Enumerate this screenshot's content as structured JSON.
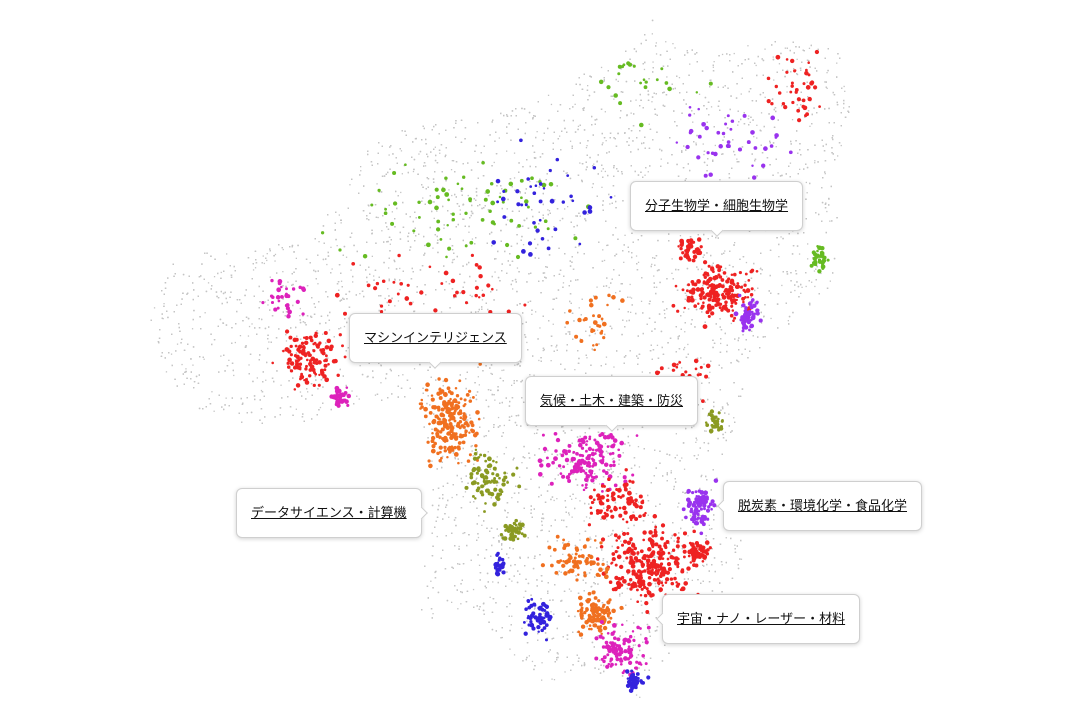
{
  "map": {
    "background_color": "#c4c4c4",
    "cluster_colors": {
      "red": "#ee2222",
      "orange": "#f07020",
      "magenta": "#dd22bb",
      "purple": "#9933ee",
      "blue": "#3322dd",
      "olive": "#8a9a22",
      "green": "#66bb22"
    }
  },
  "labels": [
    {
      "id": "molecular-biology",
      "text": "分子生物学・細胞生物学"
    },
    {
      "id": "machine-intelligence",
      "text": "マシンインテリジェンス"
    },
    {
      "id": "climate-civil",
      "text": "気候・土木・建築・防災"
    },
    {
      "id": "data-science",
      "text": "データサイエンス・計算機"
    },
    {
      "id": "decarbonization",
      "text": "脱炭素・環境化学・食品化学"
    },
    {
      "id": "space-nano",
      "text": "宇宙・ナノ・レーザー・材料"
    }
  ]
}
